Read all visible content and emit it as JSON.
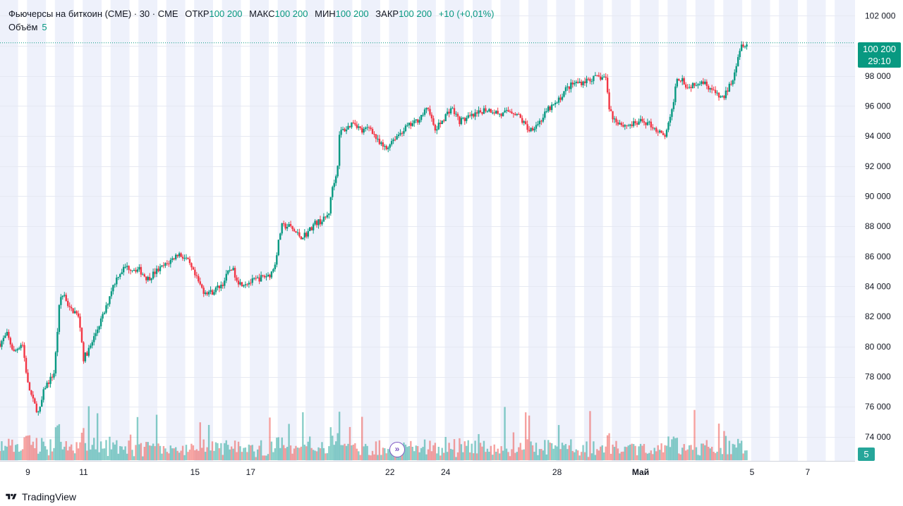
{
  "header": {
    "symbol": "Фьючерсы на биткоин (CME) · 30 · CME",
    "open_label": "ОТКР",
    "open_value": "100 200",
    "high_label": "МАКС",
    "high_value": "100 200",
    "low_label": "МИН",
    "low_value": "100 200",
    "close_label": "ЗАКР",
    "close_value": "100 200",
    "change": "+10 (+0,01%)"
  },
  "volume_legend": {
    "label": "Объём",
    "value": "5"
  },
  "price_tag": {
    "price": "100 200",
    "countdown": "29:10"
  },
  "volume_tag": "5",
  "branding": "TradingView",
  "colors": {
    "up": "#089981",
    "down": "#f23645",
    "vol_up": "#26a69a",
    "vol_down": "#ef5350",
    "session_band": "#eef1fb"
  },
  "chart_data": {
    "type": "candlestick",
    "y_ticks": [
      "102 000",
      "100 000",
      "98 000",
      "96 000",
      "94 000",
      "92 000",
      "90 000",
      "88 000",
      "86 000",
      "84 000",
      "82 000",
      "80 000",
      "78 000",
      "76 000",
      "74 000"
    ],
    "y_tick_values": [
      102000,
      100000,
      98000,
      96000,
      94000,
      92000,
      90000,
      88000,
      86000,
      84000,
      82000,
      80000,
      78000,
      76000,
      74000
    ],
    "ylim": [
      72400,
      103050
    ],
    "x_ticks": [
      "9",
      "11",
      "15",
      "17",
      "22",
      "24",
      "28",
      "Май",
      "5",
      "7"
    ],
    "x_tick_days": [
      9,
      11,
      15,
      17,
      22,
      24,
      28,
      31,
      35,
      37
    ],
    "xlim_days": [
      8,
      38.7
    ],
    "last_price": 100200,
    "close_path": [
      [
        8.0,
        80200
      ],
      [
        8.25,
        80800
      ],
      [
        8.5,
        79600
      ],
      [
        8.8,
        80300
      ],
      [
        9.0,
        77500
      ],
      [
        9.2,
        76300
      ],
      [
        9.4,
        75500
      ],
      [
        9.6,
        77300
      ],
      [
        9.8,
        77800
      ],
      [
        9.95,
        78300
      ],
      [
        10.15,
        83200
      ],
      [
        10.3,
        83500
      ],
      [
        10.5,
        82500
      ],
      [
        10.7,
        82300
      ],
      [
        10.85,
        81800
      ],
      [
        11.0,
        79200
      ],
      [
        11.25,
        80000
      ],
      [
        11.5,
        81200
      ],
      [
        11.8,
        82500
      ],
      [
        12.0,
        83800
      ],
      [
        12.25,
        84800
      ],
      [
        12.5,
        85300
      ],
      [
        13.0,
        85100
      ],
      [
        13.3,
        84500
      ],
      [
        13.6,
        85000
      ],
      [
        14.0,
        85500
      ],
      [
        14.4,
        86200
      ],
      [
        14.7,
        85800
      ],
      [
        15.0,
        84700
      ],
      [
        15.3,
        83700
      ],
      [
        15.6,
        83600
      ],
      [
        16.0,
        84200
      ],
      [
        16.3,
        85300
      ],
      [
        16.6,
        84200
      ],
      [
        17.0,
        84300
      ],
      [
        17.4,
        84600
      ],
      [
        17.7,
        84800
      ],
      [
        17.85,
        85300
      ],
      [
        18.1,
        88000
      ],
      [
        18.4,
        88000
      ],
      [
        18.6,
        87600
      ],
      [
        18.8,
        87300
      ],
      [
        19.0,
        87500
      ],
      [
        19.3,
        88200
      ],
      [
        19.6,
        88400
      ],
      [
        19.8,
        88800
      ],
      [
        19.95,
        90800
      ],
      [
        20.1,
        91500
      ],
      [
        20.2,
        94300
      ],
      [
        20.45,
        94500
      ],
      [
        20.7,
        95000
      ],
      [
        21.0,
        94300
      ],
      [
        21.3,
        94600
      ],
      [
        21.6,
        93500
      ],
      [
        21.9,
        93100
      ],
      [
        22.0,
        93600
      ],
      [
        22.3,
        94100
      ],
      [
        22.6,
        94600
      ],
      [
        22.9,
        94900
      ],
      [
        23.2,
        95500
      ],
      [
        23.4,
        95900
      ],
      [
        23.6,
        94300
      ],
      [
        23.9,
        95100
      ],
      [
        24.2,
        95900
      ],
      [
        24.5,
        95000
      ],
      [
        24.8,
        95200
      ],
      [
        25.1,
        95400
      ],
      [
        25.4,
        95800
      ],
      [
        25.7,
        95700
      ],
      [
        26.0,
        95400
      ],
      [
        26.3,
        95700
      ],
      [
        26.55,
        95500
      ],
      [
        26.75,
        95000
      ],
      [
        27.0,
        94400
      ],
      [
        27.4,
        95000
      ],
      [
        27.7,
        95800
      ],
      [
        28.0,
        96200
      ],
      [
        28.3,
        97100
      ],
      [
        28.6,
        97500
      ],
      [
        28.9,
        97600
      ],
      [
        29.2,
        97800
      ],
      [
        29.5,
        97900
      ],
      [
        29.75,
        97900
      ],
      [
        29.85,
        96100
      ],
      [
        30.0,
        95200
      ],
      [
        30.4,
        94700
      ],
      [
        30.8,
        94800
      ],
      [
        31.1,
        95000
      ],
      [
        31.4,
        94700
      ],
      [
        31.7,
        94200
      ],
      [
        31.85,
        93900
      ],
      [
        32.1,
        95300
      ],
      [
        32.3,
        97900
      ],
      [
        32.5,
        97800
      ],
      [
        32.7,
        97200
      ],
      [
        32.9,
        97500
      ],
      [
        33.2,
        97700
      ],
      [
        33.5,
        97200
      ],
      [
        33.8,
        96600
      ],
      [
        34.0,
        96600
      ],
      [
        34.3,
        97800
      ],
      [
        34.6,
        100100
      ],
      [
        34.85,
        100200
      ]
    ],
    "series": [
      {
        "name": "",
        "kind": "ohlc-30min-candles"
      },
      {
        "name": "Объём",
        "kind": "volume-bars"
      }
    ]
  }
}
